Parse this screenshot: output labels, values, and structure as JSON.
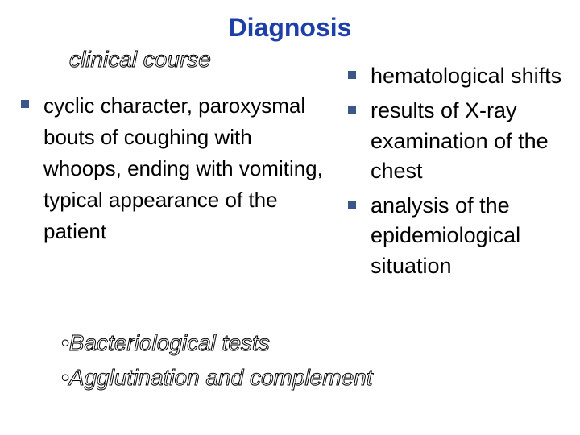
{
  "title": {
    "text": "Diagnosis",
    "color": "#1e3ea8"
  },
  "subhead_clinical": "clinical course",
  "bullet_color": "#3a5788",
  "left_item": "cyclic character, paroxysmal bouts of coughing with whoops, ending with vomiting, typical appearance of the patient",
  "right_items": {
    "0": "hematological shifts",
    "1": "results of X-ray examination of the chest",
    "2": "analysis of the epidemiological situation"
  },
  "bottom_items": {
    "0": "•Bacteriological tests",
    "1": "•Agglutination and complement"
  }
}
